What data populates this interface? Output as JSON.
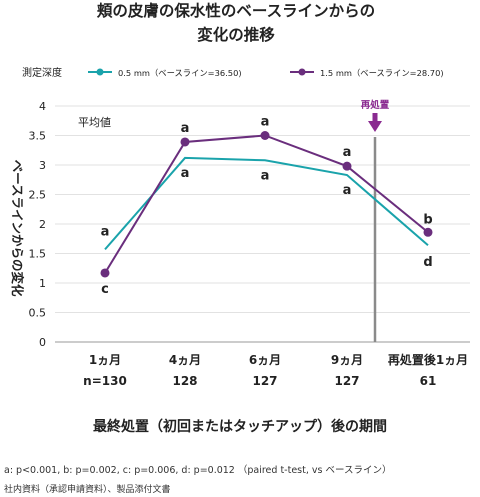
{
  "chart_data": {
    "type": "line",
    "title_lines": [
      "頬の皮膚の保水性のベースラインからの",
      "変化の推移"
    ],
    "legend_title": "測定深度",
    "legend_position": "top",
    "ylabel": "ベースラインからの変化",
    "xlabel": "最終処置（初回またはタッチアップ）後の期間",
    "ylim": [
      0,
      4
    ],
    "yticks": [
      "0",
      "0.5",
      "1",
      "1.5",
      "2",
      "2.5",
      "3",
      "3.5",
      "4"
    ],
    "categories": [
      {
        "month": "1ヵ月",
        "n": "n=130"
      },
      {
        "month": "4ヵ月",
        "n": "128"
      },
      {
        "month": "6ヵ月",
        "n": "127"
      },
      {
        "month": "9ヵ月",
        "n": "127"
      },
      {
        "month": "再処置後1ヵ月",
        "n": "61"
      }
    ],
    "annotation_mean": "平均値",
    "retreatment_label": "再処置",
    "grid": true,
    "series": [
      {
        "name": "0.5 mm（ベースライン=36.50)",
        "color": "#1aa3ab",
        "values": [
          1.57,
          3.12,
          3.08,
          2.83,
          1.64
        ],
        "labels": [
          "a",
          "a",
          "a",
          "a",
          "d"
        ]
      },
      {
        "name": "1.5 mm（ベースライン=28.70)",
        "color": "#6a2e7d",
        "values": [
          1.17,
          3.39,
          3.5,
          2.98,
          1.86
        ],
        "labels": [
          "c",
          "a",
          "a",
          "a",
          "b"
        ]
      }
    ]
  },
  "footnotes": {
    "stats": "a: p<0.001, b: p=0.002, c: p=0.006, d: p=0.012 （paired t-test, vs ベースライン）",
    "source": "社内資料（承認申請資料）、製品添付文書"
  }
}
